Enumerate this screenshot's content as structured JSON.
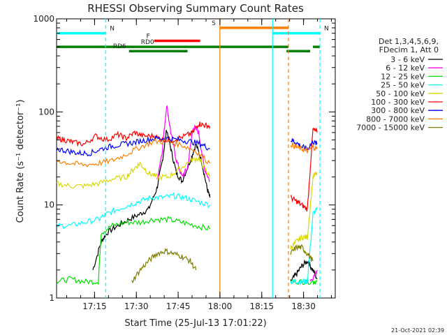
{
  "chart_data": {
    "type": "line",
    "title": "RHESSI Observing Summary Count Rates",
    "xlabel": "Start Time (25-Jul-13 17:01:22)",
    "ylabel": "Count Rate (s⁻¹ detector⁻¹)",
    "yscale": "log",
    "ylim": [
      1,
      1000
    ],
    "y_tick_labels": [
      "1",
      "10",
      "100",
      "1000"
    ],
    "x_tick_labels": [
      "17:15",
      "17:30",
      "17:45",
      "18:00",
      "18:15",
      "18:30"
    ],
    "x_tick_minutes": [
      13.63,
      28.63,
      43.63,
      58.63,
      73.63,
      88.63
    ],
    "x_range_minutes": [
      0,
      100
    ],
    "footer_date": "21-Oct-2021 02:39",
    "legend_header": [
      "Det 1,3,4,5,6,9,",
      "FDecim 1, Att 0"
    ],
    "legend": [
      {
        "label": "3 - 6 keV",
        "color": "#000000"
      },
      {
        "label": "6 - 12 keV",
        "color": "#ff00ff"
      },
      {
        "label": "12 - 25 keV",
        "color": "#00e000"
      },
      {
        "label": "25 - 50 keV",
        "color": "#00ffff"
      },
      {
        "label": "50 - 100 keV",
        "color": "#d8d800"
      },
      {
        "label": "100 - 300 keV",
        "color": "#ff0000"
      },
      {
        "label": "300 - 800 keV",
        "color": "#0000ff"
      },
      {
        "label": "800 - 7000 keV",
        "color": "#ff8000"
      },
      {
        "label": "7000 - 15000 keV",
        "color": "#808000"
      }
    ],
    "status_flags": [
      {
        "label": "N",
        "color": "#00ffff",
        "level": 700,
        "start": 0,
        "end": 17.6
      },
      {
        "label": "N",
        "color": "#00ffff",
        "level": 700,
        "start": 77.5,
        "end": 94.5
      },
      {
        "label": "S",
        "color": "#ff8000",
        "level": 800,
        "start": 58.6,
        "end": 83.2
      },
      {
        "label": "F",
        "color": "#ff0000",
        "level": 580,
        "start": 35.0,
        "end": 51.5
      },
      {
        "label": "RD0",
        "color": "#008000",
        "level": 500,
        "start": 0,
        "end": 83.2
      },
      {
        "label": "",
        "color": "#008000",
        "level": 500,
        "start": 92.0,
        "end": 94.5
      },
      {
        "label": "RD6",
        "color": "#008000",
        "level": 450,
        "start": 26.0,
        "end": 47.0
      },
      {
        "label": "",
        "color": "#008000",
        "level": 450,
        "start": 82.5,
        "end": 91.0
      }
    ],
    "vertical_markers": [
      {
        "minute": 17.6,
        "color": "#00ffff",
        "style": "dashed"
      },
      {
        "minute": 58.6,
        "color": "#ff8000",
        "style": "solid"
      },
      {
        "minute": 77.5,
        "color": "#00ffff",
        "style": "solid"
      },
      {
        "minute": 83.2,
        "color": "#ff8000",
        "style": "dashed"
      },
      {
        "minute": 94.5,
        "color": "#00ffff",
        "style": "dashed"
      }
    ],
    "series": [
      {
        "name": "3 - 6 keV",
        "color": "#000000",
        "segments": [
          {
            "x": [
              13,
              16,
              18,
              22,
              26,
              30,
              33,
              36,
              38,
              39.5,
              41,
              43,
              45,
              48,
              50,
              52,
              54,
              55
            ],
            "y": [
              2,
              4,
              5,
              6,
              7,
              8,
              9,
              15,
              30,
              65,
              40,
              22,
              18,
              30,
              45,
              30,
              15,
              12
            ]
          },
          {
            "x": [
              84,
              86,
              88,
              90,
              92,
              93.5
            ],
            "y": [
              1.5,
              1.8,
              2.2,
              2.5,
              2.0,
              1.6
            ]
          }
        ]
      },
      {
        "name": "6 - 12 keV",
        "color": "#ff00ff",
        "segments": [
          {
            "x": [
              36,
              38,
              39.5,
              41,
              43,
              45,
              47,
              49,
              51,
              53,
              55
            ],
            "y": [
              18,
              40,
              120,
              60,
              30,
              20,
              25,
              70,
              60,
              25,
              18
            ]
          },
          {
            "x": [
              91,
              93.5
            ],
            "y": [
              1.5,
              2.0
            ]
          }
        ]
      },
      {
        "name": "12 - 25 keV",
        "color": "#00e000",
        "segments": [
          {
            "x": [
              0,
              5,
              10,
              15,
              16,
              20,
              25,
              30,
              35,
              40,
              45,
              50,
              55
            ],
            "y": [
              1.5,
              1.6,
              1.5,
              1.5,
              5,
              6,
              6.5,
              6.5,
              7,
              7,
              6.5,
              6,
              5.5
            ]
          },
          {
            "x": [
              84,
              88,
              92,
              93.5
            ],
            "y": [
              1.5,
              1.5,
              1.5,
              1.5
            ]
          }
        ]
      },
      {
        "name": "25 - 50 keV",
        "color": "#00ffff",
        "segments": [
          {
            "x": [
              0,
              5,
              10,
              15,
              18,
              22,
              26,
              30,
              34,
              38,
              42,
              46,
              50,
              55
            ],
            "y": [
              6,
              6,
              6.5,
              7,
              8,
              9,
              10,
              11,
              12,
              12,
              12.5,
              12,
              11,
              10
            ]
          },
          {
            "x": [
              84,
              86,
              88,
              90,
              92,
              93.5
            ],
            "y": [
              1.5,
              1.5,
              1.5,
              1.5,
              8,
              9
            ]
          }
        ]
      },
      {
        "name": "50 - 100 keV",
        "color": "#d8d800",
        "segments": [
          {
            "x": [
              0,
              5,
              10,
              15,
              20,
              25,
              28,
              30,
              33,
              36,
              40,
              44,
              48,
              51,
              53,
              55
            ],
            "y": [
              17,
              16,
              16,
              17,
              19,
              20,
              25,
              28,
              22,
              20,
              20,
              24,
              30,
              32,
              25,
              20
            ]
          },
          {
            "x": [
              84,
              86,
              88,
              90,
              92,
              93.5
            ],
            "y": [
              3.5,
              4,
              4.5,
              4.5,
              20,
              22
            ]
          }
        ]
      },
      {
        "name": "100 - 300 keV",
        "color": "#ff0000",
        "segments": [
          {
            "x": [
              0,
              3,
              6,
              10,
              14,
              18,
              22,
              25,
              28,
              31,
              35,
              38,
              42,
              46,
              49,
              51,
              53,
              55
            ],
            "y": [
              52,
              50,
              47,
              45,
              55,
              50,
              57,
              52,
              60,
              55,
              55,
              50,
              50,
              55,
              60,
              75,
              72,
              70
            ]
          },
          {
            "x": [
              84,
              86,
              88,
              90,
              92,
              93.5
            ],
            "y": [
              12,
              11,
              10,
              9,
              65,
              60
            ]
          }
        ]
      },
      {
        "name": "300 - 800 keV",
        "color": "#0000ff",
        "segments": [
          {
            "x": [
              0,
              4,
              8,
              12,
              16,
              20,
              24,
              28,
              32,
              36,
              40,
              44,
              48,
              52,
              55
            ],
            "y": [
              40,
              38,
              36,
              36,
              40,
              43,
              45,
              47,
              50,
              52,
              52,
              50,
              48,
              45,
              40
            ]
          },
          {
            "x": [
              84,
              86,
              88,
              90,
              92,
              93.5
            ],
            "y": [
              50,
              47,
              42,
              40,
              48,
              45
            ]
          }
        ]
      },
      {
        "name": "800 - 7000 keV",
        "color": "#ff8000",
        "segments": [
          {
            "x": [
              0,
              5,
              10,
              15,
              20,
              25,
              30,
              35,
              40,
              45,
              50,
              55
            ],
            "y": [
              30,
              28,
              27,
              28,
              30,
              35,
              42,
              48,
              48,
              44,
              38,
              28
            ]
          },
          {
            "x": [
              84,
              86,
              88,
              90,
              92,
              93.5
            ],
            "y": [
              45,
              42,
              40,
              38,
              42,
              40
            ]
          }
        ]
      },
      {
        "name": "7000 - 15000 keV",
        "color": "#808000",
        "segments": [
          {
            "x": [
              27,
              30,
              33,
              36,
              39,
              42,
              45,
              48,
              50
            ],
            "y": [
              1.5,
              2.0,
              2.5,
              3.0,
              3.2,
              3.0,
              2.8,
              2.5,
              2.0
            ]
          },
          {
            "x": [
              84,
              86,
              88,
              90,
              92
            ],
            "y": [
              3.0,
              3.5,
              3.5,
              3.0,
              2.5
            ]
          }
        ]
      }
    ]
  }
}
